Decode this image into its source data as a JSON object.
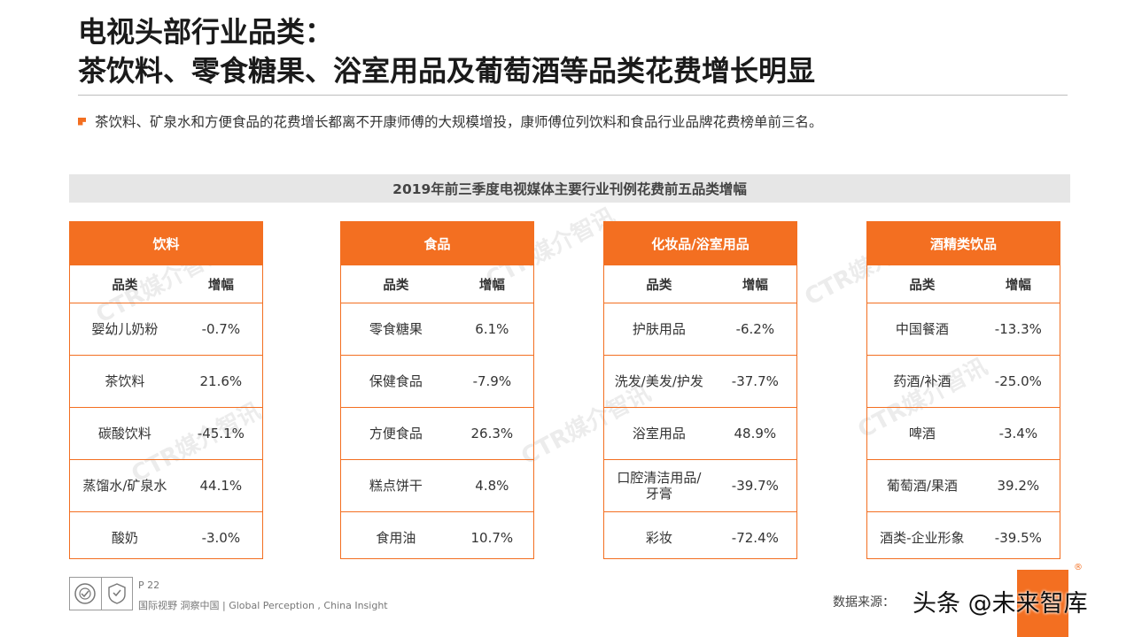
{
  "title_line1": "电视头部行业品类：",
  "title_line2": "茶饮料、零食糖果、浴室用品及葡萄酒等品类花费增长明显",
  "bullet": "茶饮料、矿泉水和方便食品的花费增长都离不开康师傅的大规模增投，康师傅位列饮料和食品行业品牌花费榜单前三名。",
  "banner": "2019年前三季度电视媒体主要行业刊例花费前五品类增幅",
  "col_category": "品类",
  "col_growth": "增幅",
  "accent_color": "#f36f21",
  "watermark": "CTR媒介智讯",
  "panels": [
    {
      "title": "饮料",
      "rows": [
        {
          "category": "婴幼儿奶粉",
          "growth": "-0.7%"
        },
        {
          "category": "茶饮料",
          "growth": "21.6%"
        },
        {
          "category": "碳酸饮料",
          "growth": "-45.1%"
        },
        {
          "category": "蒸馏水/矿泉水",
          "growth": "44.1%"
        },
        {
          "category": "酸奶",
          "growth": "-3.0%"
        }
      ]
    },
    {
      "title": "食品",
      "rows": [
        {
          "category": "零食糖果",
          "growth": "6.1%"
        },
        {
          "category": "保健食品",
          "growth": "-7.9%"
        },
        {
          "category": "方便食品",
          "growth": "26.3%"
        },
        {
          "category": "糕点饼干",
          "growth": "4.8%"
        },
        {
          "category": "食用油",
          "growth": "10.7%"
        }
      ]
    },
    {
      "title": "化妆品/浴室用品",
      "rows": [
        {
          "category": "护肤用品",
          "growth": "-6.2%"
        },
        {
          "category": "洗发/美发/护发",
          "growth": "-37.7%"
        },
        {
          "category": "浴室用品",
          "growth": "48.9%"
        },
        {
          "category": "口腔清洁用品/牙膏",
          "growth": "-39.7%"
        },
        {
          "category": "彩妆",
          "growth": "-72.4%"
        }
      ]
    },
    {
      "title": "酒精类饮品",
      "rows": [
        {
          "category": "中国餐酒",
          "growth": "-13.3%"
        },
        {
          "category": "药酒/补酒",
          "growth": "-25.0%"
        },
        {
          "category": "啤酒",
          "growth": "-3.4%"
        },
        {
          "category": "葡萄酒/果酒",
          "growth": "39.2%"
        },
        {
          "category": "酒类-企业形象",
          "growth": "-39.5%"
        }
      ]
    }
  ],
  "footer": {
    "page": "P 22",
    "tagline": "国际视野 洞察中国 | Global Perception , China Insight",
    "source": "数据来源：",
    "stamp": "头条 @未来智库",
    "reg": "®"
  }
}
